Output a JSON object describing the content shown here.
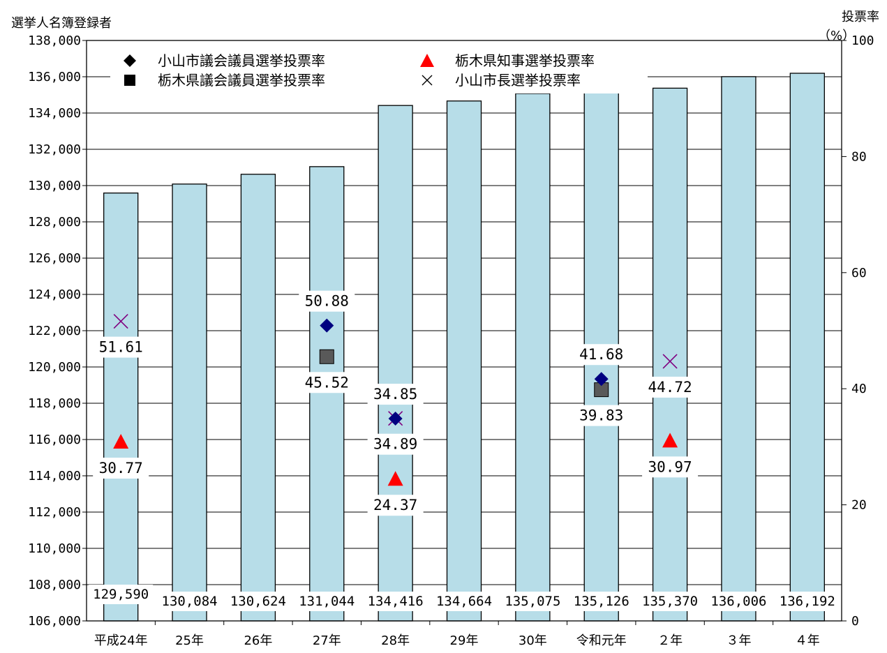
{
  "chart_data": {
    "type": "bar",
    "categories": [
      "平成24年",
      "25年",
      "26年",
      "27年",
      "28年",
      "29年",
      "30年",
      "令和元年",
      "２年",
      "３年",
      "４年"
    ],
    "left_axis": {
      "title": "選挙人名簿登録者",
      "ylim": [
        106000,
        138000
      ],
      "tick_step": 2000,
      "tick_labels": [
        "106,000",
        "108,000",
        "110,000",
        "112,000",
        "114,000",
        "116,000",
        "118,000",
        "120,000",
        "122,000",
        "124,000",
        "126,000",
        "128,000",
        "130,000",
        "132,000",
        "134,000",
        "136,000",
        "138,000"
      ]
    },
    "right_axis": {
      "title": "投票率",
      "unit_label": "（%）",
      "ylim": [
        0,
        100
      ],
      "tick_labels": [
        "0",
        "20",
        "40",
        "60",
        "80",
        "100"
      ]
    },
    "bars": {
      "values": [
        129590,
        130084,
        130624,
        131044,
        134416,
        134664,
        135075,
        135126,
        135370,
        136006,
        136192
      ],
      "labels": [
        "129,590",
        "130,084",
        "130,624",
        "131,044",
        "134,416",
        "134,664",
        "135,075",
        "135,126",
        "135,370",
        "136,006",
        "136,192"
      ],
      "color": "#b7dde8"
    },
    "series": [
      {
        "name": "小山市議会議員選挙投票率",
        "marker": "diamond",
        "color": "#000080",
        "points": [
          {
            "category": "27年",
            "value": 50.88,
            "label": "50.88",
            "label_pos": "above"
          },
          {
            "category": "28年",
            "value": 34.85,
            "label": "34.85",
            "label_pos": "above"
          },
          {
            "category": "令和元年",
            "value": 41.68,
            "label": "41.68",
            "label_pos": "above"
          }
        ]
      },
      {
        "name": "栃木県議会議員選挙投票率",
        "marker": "square",
        "color": "#595959",
        "points": [
          {
            "category": "27年",
            "value": 45.52,
            "label": "45.52",
            "label_pos": "below"
          },
          {
            "category": "令和元年",
            "value": 39.83,
            "label": "39.83",
            "label_pos": "below"
          }
        ]
      },
      {
        "name": "栃木県知事選挙投票率",
        "marker": "triangle",
        "color": "#ff0000",
        "points": [
          {
            "category": "平成24年",
            "value": 30.77,
            "label": "30.77",
            "label_pos": "below"
          },
          {
            "category": "28年",
            "value": 24.37,
            "label": "24.37",
            "label_pos": "below"
          },
          {
            "category": "２年",
            "value": 30.97,
            "label": "30.97",
            "label_pos": "below"
          }
        ]
      },
      {
        "name": "小山市長選挙投票率",
        "marker": "x",
        "color": "#800080",
        "points": [
          {
            "category": "平成24年",
            "value": 51.61,
            "label": "51.61",
            "label_pos": "below"
          },
          {
            "category": "28年",
            "value": 34.89,
            "label": "34.89",
            "label_pos": "below"
          },
          {
            "category": "２年",
            "value": 44.72,
            "label": "44.72",
            "label_pos": "below"
          }
        ]
      }
    ],
    "legend": {
      "position": "top-left",
      "items": [
        {
          "symbol": "◆",
          "label": "小山市議会議員選挙投票率"
        },
        {
          "symbol": "▲",
          "label": "栃木県知事選挙投票率"
        },
        {
          "symbol": "■",
          "label": "栃木県議会議員選挙投票率"
        },
        {
          "symbol": "×",
          "label": "小山市長選挙投票率"
        }
      ]
    },
    "grid": "horizontal"
  }
}
